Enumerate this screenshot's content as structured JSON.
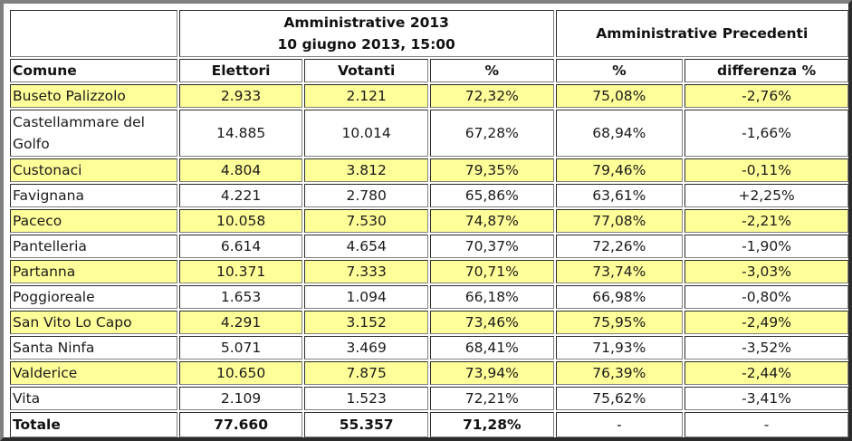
{
  "header": {
    "group_current_line1": "Amministrative 2013",
    "group_current_line2": "10 giugno 2013, 15:00",
    "group_previous": "Amministrative Precedenti"
  },
  "columns": [
    "Comune",
    "Elettori",
    "Votanti",
    "%",
    "%",
    "differenza %"
  ],
  "highlight_color": "#ffff99",
  "rows": [
    {
      "comune": "Buseto Palizzolo",
      "elettori": "2.933",
      "votanti": "2.121",
      "pct": "72,32%",
      "prev_pct": "75,08%",
      "diff": "-2,76%",
      "highlight": true
    },
    {
      "comune": "Castellammare del Golfo",
      "elettori": "14.885",
      "votanti": "10.014",
      "pct": "67,28%",
      "prev_pct": "68,94%",
      "diff": "-1,66%",
      "highlight": false
    },
    {
      "comune": "Custonaci",
      "elettori": "4.804",
      "votanti": "3.812",
      "pct": "79,35%",
      "prev_pct": "79,46%",
      "diff": "-0,11%",
      "highlight": true
    },
    {
      "comune": "Favignana",
      "elettori": "4.221",
      "votanti": "2.780",
      "pct": "65,86%",
      "prev_pct": "63,61%",
      "diff": "+2,25%",
      "highlight": false
    },
    {
      "comune": "Paceco",
      "elettori": "10.058",
      "votanti": "7.530",
      "pct": "74,87%",
      "prev_pct": "77,08%",
      "diff": "-2,21%",
      "highlight": true
    },
    {
      "comune": "Pantelleria",
      "elettori": "6.614",
      "votanti": "4.654",
      "pct": "70,37%",
      "prev_pct": "72,26%",
      "diff": "-1,90%",
      "highlight": false
    },
    {
      "comune": "Partanna",
      "elettori": "10.371",
      "votanti": "7.333",
      "pct": "70,71%",
      "prev_pct": "73,74%",
      "diff": "-3,03%",
      "highlight": true
    },
    {
      "comune": "Poggioreale",
      "elettori": "1.653",
      "votanti": "1.094",
      "pct": "66,18%",
      "prev_pct": "66,98%",
      "diff": "-0,80%",
      "highlight": false
    },
    {
      "comune": "San Vito Lo Capo",
      "elettori": "4.291",
      "votanti": "3.152",
      "pct": "73,46%",
      "prev_pct": "75,95%",
      "diff": "-2,49%",
      "highlight": true
    },
    {
      "comune": "Santa Ninfa",
      "elettori": "5.071",
      "votanti": "3.469",
      "pct": "68,41%",
      "prev_pct": "71,93%",
      "diff": "-3,52%",
      "highlight": false
    },
    {
      "comune": "Valderice",
      "elettori": "10.650",
      "votanti": "7.875",
      "pct": "73,94%",
      "prev_pct": "76,39%",
      "diff": "-2,44%",
      "highlight": true
    },
    {
      "comune": "Vita",
      "elettori": "2.109",
      "votanti": "1.523",
      "pct": "72,21%",
      "prev_pct": "75,62%",
      "diff": "-3,41%",
      "highlight": false
    }
  ],
  "total": {
    "label": "Totale",
    "elettori": "77.660",
    "votanti": "55.357",
    "pct": "71,28%",
    "prev_pct": "-",
    "diff": "-"
  }
}
